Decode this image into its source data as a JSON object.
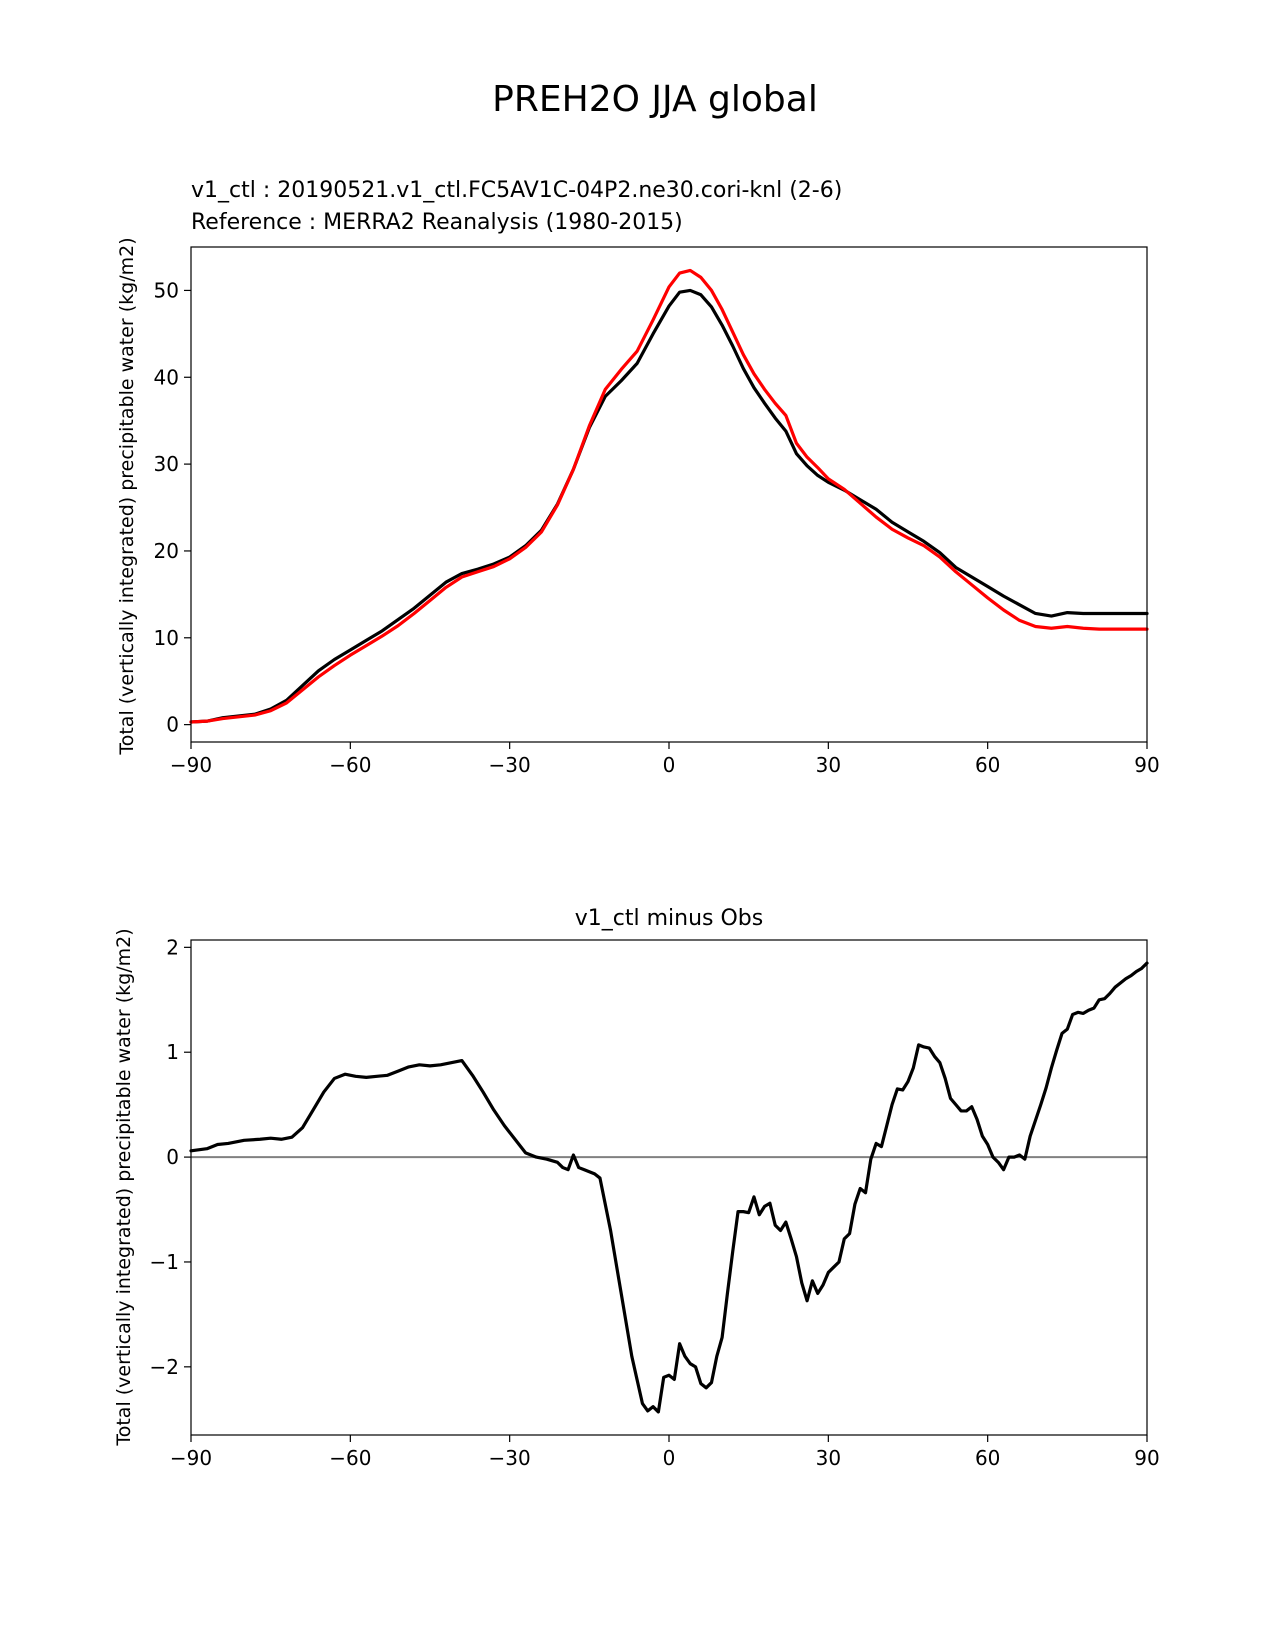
{
  "figure_title": "PREH2O JJA global",
  "chart_data": [
    {
      "type": "line",
      "subtitle_test": "v1_ctl : 20190521.v1_ctl.FC5AV1C-04P2.ne30.cori-knl (2-6)",
      "subtitle_ref": "Reference : MERRA2 Reanalysis (1980-2015)",
      "ylabel": "Total (vertically integrated) precipitable water (kg/m2)",
      "xlim": [
        -90,
        90
      ],
      "ylim": [
        -2,
        55
      ],
      "xticks": [
        -90,
        -60,
        -30,
        0,
        30,
        60,
        90
      ],
      "xtick_labels": [
        "−90",
        "−60",
        "−30",
        "0",
        "30",
        "60",
        "90"
      ],
      "yticks": [
        0,
        10,
        20,
        30,
        40,
        50
      ],
      "ytick_labels": [
        "0",
        "10",
        "20",
        "30",
        "40",
        "50"
      ],
      "series": [
        {
          "name": "v1_ctl",
          "color": "#000000",
          "x": [
            -90,
            -87,
            -84,
            -81,
            -78,
            -75,
            -72,
            -69,
            -66,
            -63,
            -60,
            -57,
            -54,
            -51,
            -48,
            -45,
            -42,
            -39,
            -36,
            -33,
            -30,
            -27,
            -24,
            -21,
            -18,
            -15,
            -12,
            -9,
            -6,
            -3,
            0,
            2,
            4,
            6,
            8,
            10,
            12,
            14,
            16,
            18,
            20,
            22,
            24,
            26,
            28,
            30,
            33,
            36,
            39,
            42,
            45,
            48,
            51,
            54,
            57,
            60,
            63,
            66,
            69,
            72,
            75,
            78,
            81,
            84,
            87,
            90
          ],
          "y": [
            0.3,
            0.4,
            0.8,
            1.0,
            1.2,
            1.8,
            2.8,
            4.5,
            6.2,
            7.5,
            8.6,
            9.7,
            10.8,
            12.1,
            13.4,
            14.9,
            16.4,
            17.4,
            17.9,
            18.5,
            19.3,
            20.6,
            22.4,
            25.4,
            29.4,
            34.2,
            37.8,
            39.6,
            41.6,
            45.0,
            48.2,
            49.8,
            50.0,
            49.5,
            48.1,
            46.0,
            43.6,
            41.0,
            38.8,
            37.0,
            35.3,
            33.8,
            31.2,
            29.8,
            28.7,
            27.9,
            27.0,
            25.9,
            24.8,
            23.3,
            22.2,
            21.1,
            19.8,
            18.1,
            17.0,
            15.9,
            14.8,
            13.8,
            12.8,
            12.5,
            12.9,
            12.8,
            12.8,
            12.8,
            12.8,
            12.8
          ]
        },
        {
          "name": "MERRA2",
          "color": "#ff0000",
          "x": [
            -90,
            -87,
            -84,
            -81,
            -78,
            -75,
            -72,
            -69,
            -66,
            -63,
            -60,
            -57,
            -54,
            -51,
            -48,
            -45,
            -42,
            -39,
            -36,
            -33,
            -30,
            -27,
            -24,
            -21,
            -18,
            -15,
            -12,
            -9,
            -6,
            -3,
            0,
            2,
            4,
            6,
            8,
            10,
            12,
            14,
            16,
            18,
            20,
            22,
            24,
            26,
            28,
            30,
            33,
            36,
            39,
            42,
            45,
            48,
            51,
            54,
            57,
            60,
            63,
            66,
            69,
            72,
            75,
            78,
            81,
            84,
            87,
            90
          ],
          "y": [
            0.3,
            0.4,
            0.7,
            0.9,
            1.1,
            1.6,
            2.5,
            4.0,
            5.5,
            6.8,
            8.0,
            9.1,
            10.2,
            11.4,
            12.8,
            14.3,
            15.8,
            17.0,
            17.6,
            18.2,
            19.1,
            20.4,
            22.2,
            25.3,
            29.4,
            34.4,
            38.6,
            40.9,
            43.0,
            46.6,
            50.4,
            52.0,
            52.3,
            51.5,
            50.0,
            47.8,
            45.2,
            42.6,
            40.4,
            38.6,
            37.0,
            35.6,
            32.4,
            30.8,
            29.6,
            28.3,
            27.1,
            25.5,
            23.9,
            22.5,
            21.5,
            20.6,
            19.3,
            17.6,
            16.1,
            14.6,
            13.2,
            12.0,
            11.3,
            11.1,
            11.3,
            11.1,
            11.0,
            11.0,
            11.0,
            11.0
          ]
        }
      ]
    },
    {
      "type": "line",
      "subtitle": "v1_ctl minus Obs",
      "ylabel": "Total (vertically integrated) precipitable water (kg/m2)",
      "xlim": [
        -90,
        90
      ],
      "ylim": [
        -2.65,
        2.07
      ],
      "xticks": [
        -90,
        -60,
        -30,
        0,
        30,
        60,
        90
      ],
      "xtick_labels": [
        "−90",
        "−60",
        "−30",
        "0",
        "30",
        "60",
        "90"
      ],
      "yticks": [
        -2,
        -1,
        0,
        1,
        2
      ],
      "ytick_labels": [
        "−2",
        "−1",
        "0",
        "1",
        "2"
      ],
      "zero_line_color": "#808080",
      "series": [
        {
          "name": "v1_ctl minus Obs",
          "color": "#000000",
          "x": [
            -90,
            -87,
            -85,
            -83,
            -80,
            -77,
            -75,
            -73,
            -71,
            -69,
            -67,
            -65,
            -63,
            -61,
            -59,
            -57,
            -55,
            -53,
            -51,
            -49,
            -47,
            -45,
            -43,
            -41,
            -39,
            -37,
            -35,
            -33,
            -31,
            -29,
            -27,
            -25,
            -23,
            -21,
            -20,
            -19,
            -18,
            -17,
            -16,
            -15,
            -14,
            -13,
            -11,
            -9,
            -7,
            -5,
            -4,
            -3,
            -2,
            -1,
            0,
            1,
            2,
            3,
            4,
            5,
            6,
            7,
            8,
            9,
            10,
            11,
            12,
            13,
            14,
            15,
            16,
            17,
            18,
            19,
            20,
            21,
            22,
            23,
            24,
            25,
            26,
            27,
            28,
            29,
            30,
            31,
            32,
            33,
            34,
            35,
            36,
            37,
            38,
            39,
            40,
            41,
            42,
            43,
            44,
            45,
            46,
            47,
            48,
            49,
            50,
            51,
            52,
            53,
            54,
            55,
            56,
            57,
            58,
            59,
            60,
            61,
            62,
            63,
            64,
            65,
            66,
            67,
            68,
            69,
            70,
            71,
            72,
            73,
            74,
            75,
            76,
            77,
            78,
            79,
            80,
            81,
            82,
            83,
            84,
            85,
            86,
            87,
            88,
            89,
            90
          ],
          "y": [
            0.06,
            0.08,
            0.12,
            0.13,
            0.16,
            0.17,
            0.18,
            0.17,
            0.19,
            0.28,
            0.45,
            0.62,
            0.75,
            0.79,
            0.77,
            0.76,
            0.77,
            0.78,
            0.82,
            0.86,
            0.88,
            0.87,
            0.88,
            0.9,
            0.92,
            0.78,
            0.62,
            0.45,
            0.3,
            0.17,
            0.04,
            0.0,
            -0.02,
            -0.05,
            -0.1,
            -0.12,
            0.02,
            -0.1,
            -0.12,
            -0.14,
            -0.16,
            -0.2,
            -0.7,
            -1.3,
            -1.9,
            -2.35,
            -2.42,
            -2.38,
            -2.43,
            -2.1,
            -2.08,
            -2.12,
            -1.78,
            -1.9,
            -1.97,
            -2.0,
            -2.16,
            -2.2,
            -2.15,
            -1.9,
            -1.72,
            -1.3,
            -0.9,
            -0.52,
            -0.52,
            -0.53,
            -0.38,
            -0.55,
            -0.47,
            -0.44,
            -0.65,
            -0.7,
            -0.62,
            -0.78,
            -0.95,
            -1.2,
            -1.37,
            -1.18,
            -1.3,
            -1.22,
            -1.1,
            -1.05,
            -1.0,
            -0.78,
            -0.73,
            -0.45,
            -0.3,
            -0.34,
            -0.02,
            0.13,
            0.1,
            0.3,
            0.5,
            0.65,
            0.64,
            0.72,
            0.85,
            1.07,
            1.05,
            1.04,
            0.96,
            0.9,
            0.75,
            0.56,
            0.5,
            0.44,
            0.44,
            0.48,
            0.36,
            0.2,
            0.12,
            0.0,
            -0.05,
            -0.12,
            0.0,
            0.0,
            0.02,
            -0.02,
            0.2,
            0.35,
            0.5,
            0.66,
            0.85,
            1.02,
            1.18,
            1.22,
            1.36,
            1.38,
            1.37,
            1.4,
            1.42,
            1.5,
            1.51,
            1.56,
            1.62,
            1.66,
            1.7,
            1.73,
            1.77,
            1.8,
            1.85
          ]
        }
      ]
    }
  ]
}
